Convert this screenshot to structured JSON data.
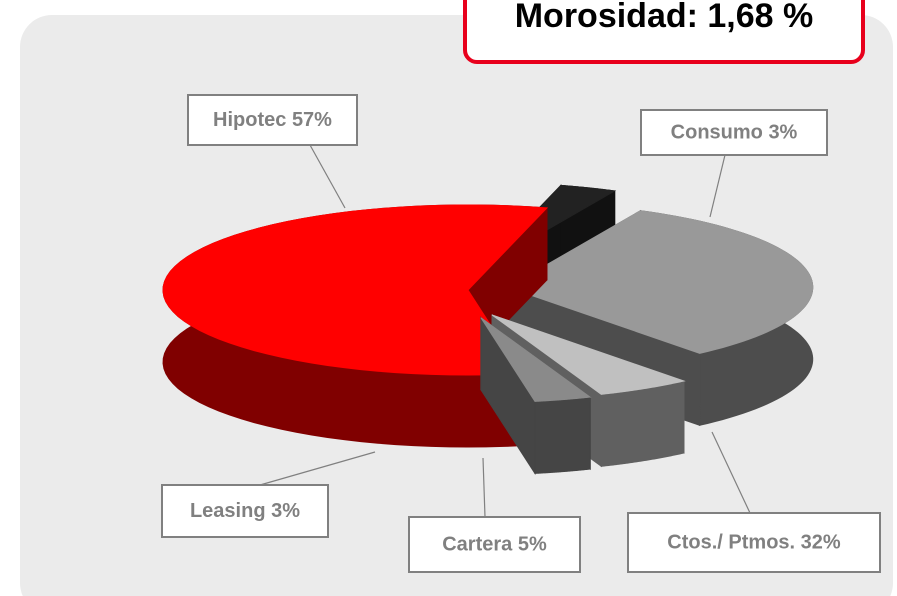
{
  "chart_data": {
    "type": "pie",
    "annotation": "Morosidad: 1,68 %",
    "categories": [
      "Consumo",
      "Ctos./ Ptmos.",
      "Cartera",
      "Leasing",
      "Hipotec"
    ],
    "values": [
      3,
      32,
      5,
      3,
      57
    ],
    "value_labels": [
      "3%",
      "32%",
      "5%",
      "3%",
      "57%"
    ],
    "colors": [
      "#222222",
      "#999999",
      "#c0c0c0",
      "#8a8a8a",
      "#ff0000"
    ]
  }
}
